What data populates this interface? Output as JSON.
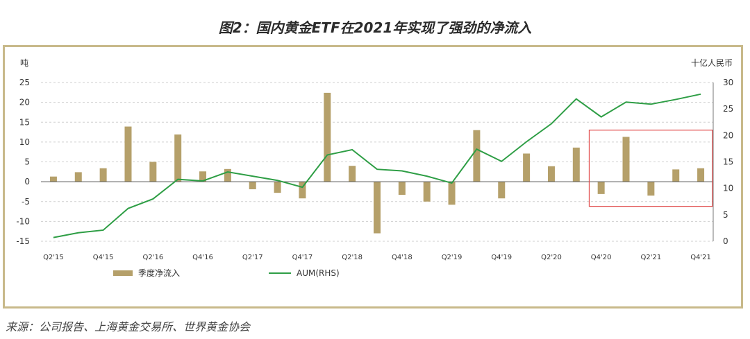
{
  "page": {
    "title": "图2：国内黄金ETF在2021年实现了强劲的净流入",
    "source": "来源：公司报告、上海黄金交易所、世界黄金协会"
  },
  "colors": {
    "bar": "#b5a06a",
    "line": "#2e9e45",
    "highlight": "#e04848",
    "grid": "#cfcfcf",
    "frame": "#c8b98a"
  },
  "chart_data": {
    "type": "bar",
    "left_axis_label": "吨",
    "right_axis_label": "十亿人民币",
    "ylim_left": [
      -15,
      25
    ],
    "ylim_right": [
      0,
      30
    ],
    "yticks_left": [
      -15,
      -10,
      -5,
      0,
      5,
      10,
      15,
      20,
      25
    ],
    "yticks_right": [
      0,
      5,
      10,
      15,
      20,
      25,
      30
    ],
    "x_tick_labels": [
      {
        "index": 0,
        "label": "Q2'15"
      },
      {
        "index": 2,
        "label": "Q4'15"
      },
      {
        "index": 4,
        "label": "Q2'16"
      },
      {
        "index": 6,
        "label": "Q4'16"
      },
      {
        "index": 8,
        "label": "Q2'17"
      },
      {
        "index": 10,
        "label": "Q4'17"
      },
      {
        "index": 12,
        "label": "Q2'18"
      },
      {
        "index": 14,
        "label": "Q4'18"
      },
      {
        "index": 16,
        "label": "Q2'19"
      },
      {
        "index": 18,
        "label": "Q4'19"
      },
      {
        "index": 20,
        "label": "Q2'20"
      },
      {
        "index": 22,
        "label": "Q4'20"
      },
      {
        "index": 24,
        "label": "Q2'21"
      },
      {
        "index": 26,
        "label": "Q4'21"
      }
    ],
    "quarters": [
      "Q2'15",
      "Q3'15",
      "Q4'15",
      "Q1'16",
      "Q2'16",
      "Q3'16",
      "Q4'16",
      "Q1'17",
      "Q2'17",
      "Q3'17",
      "Q4'17",
      "Q1'18",
      "Q2'18",
      "Q3'18",
      "Q4'18",
      "Q1'19",
      "Q2'19",
      "Q3'19",
      "Q4'19",
      "Q1'20",
      "Q2'20",
      "Q3'20",
      "Q4'20",
      "Q1'21",
      "Q2'21",
      "Q3'21",
      "Q4'21"
    ],
    "series": [
      {
        "name": "季度净流入",
        "type": "bar",
        "axis": "left",
        "values": [
          1.3,
          2.4,
          3.4,
          13.9,
          5.0,
          11.9,
          2.6,
          3.2,
          -1.9,
          -2.8,
          -4.2,
          22.4,
          4.0,
          -13.0,
          -3.3,
          -5.0,
          -5.8,
          13.0,
          -4.2,
          7.1,
          3.9,
          8.6,
          -3.1,
          11.3,
          -3.5,
          3.1,
          3.4
        ]
      },
      {
        "name": "AUM(RHS)",
        "type": "line",
        "axis": "right",
        "values": [
          0.7,
          1.6,
          2.1,
          6.2,
          8.0,
          11.7,
          11.4,
          13.1,
          12.3,
          11.5,
          10.2,
          16.3,
          17.3,
          13.6,
          13.3,
          12.3,
          11.0,
          17.4,
          15.1,
          18.8,
          22.2,
          26.9,
          23.5,
          26.3,
          25.9,
          26.8,
          27.8
        ]
      }
    ],
    "highlight_box": {
      "from": "Q4'20",
      "to": "Q4'21"
    },
    "legend_position": "bottom"
  }
}
